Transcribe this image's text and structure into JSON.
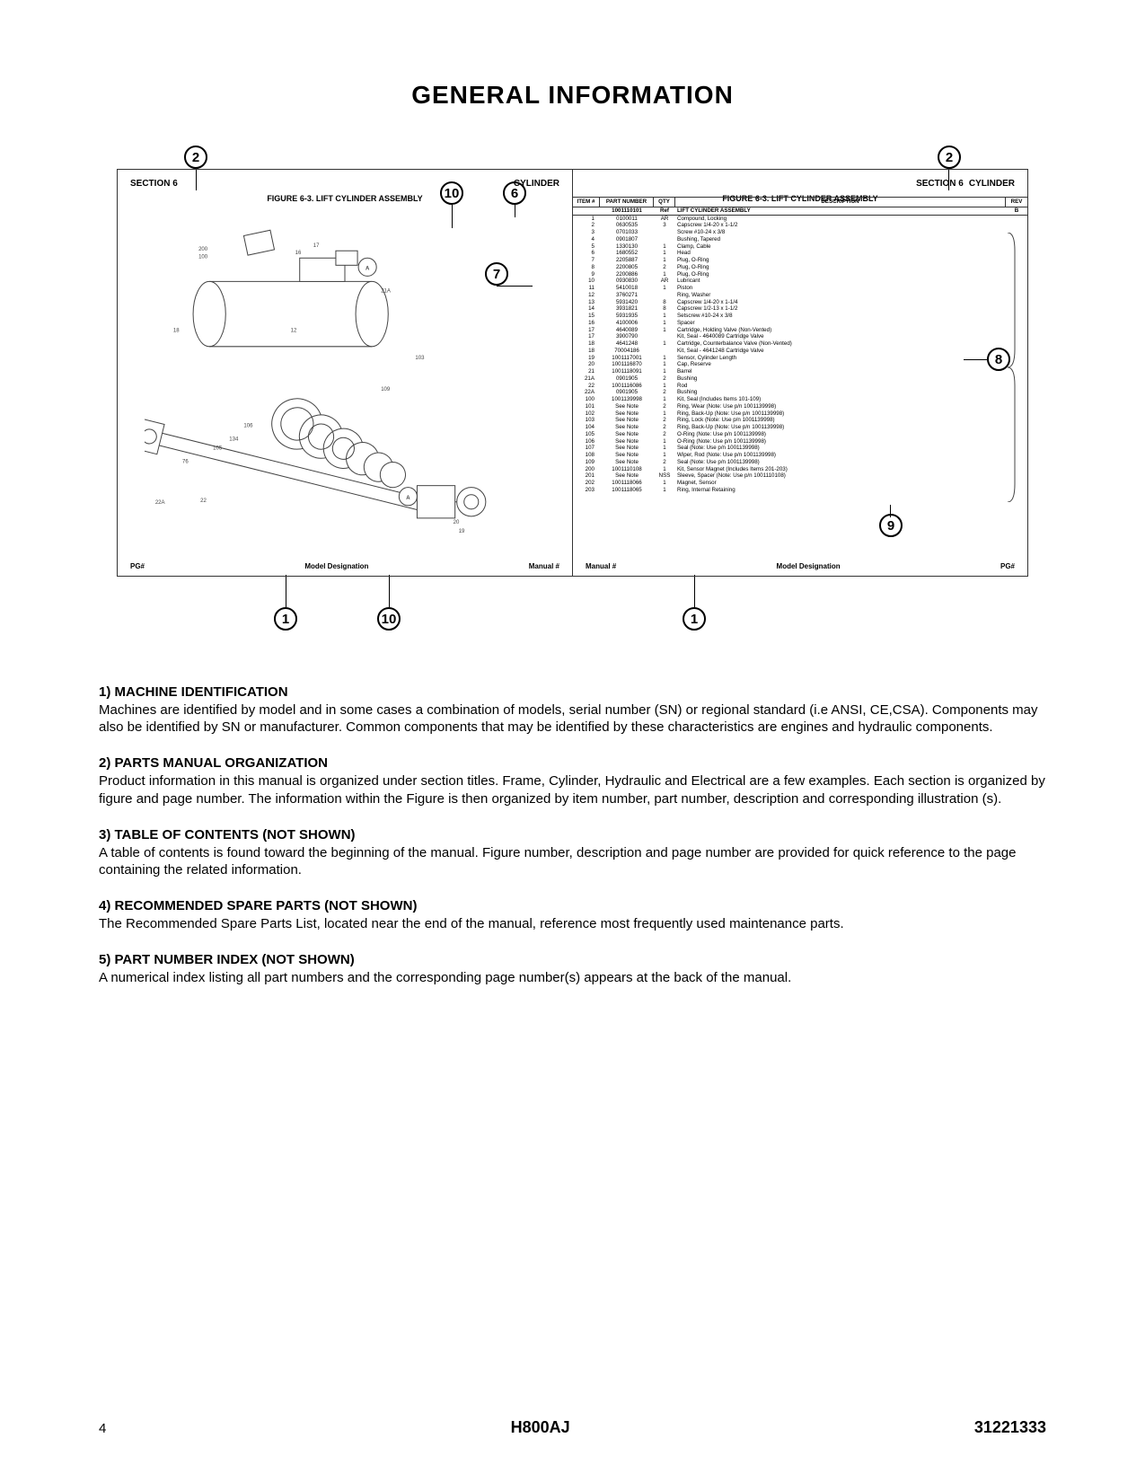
{
  "title": "GENERAL INFORMATION",
  "diagram": {
    "callouts": {
      "c1": "1",
      "c2": "2",
      "c6": "6",
      "c7": "7",
      "c8": "8",
      "c9": "9",
      "c10": "10"
    },
    "left_panel": {
      "section_l": "SECTION 6",
      "section_r": "CYLINDER",
      "fig_title": "FIGURE 6-3. LIFT CYLINDER ASSEMBLY",
      "badge_a": "A",
      "footer_l": "PG#",
      "footer_c": "Model Designation",
      "footer_r": "Manual #"
    },
    "right_panel": {
      "section_l": "SECTION 6",
      "section_r": "CYLINDER",
      "fig_title": "FIGURE 6-3. LIFT CYLINDER ASSEMBLY",
      "table_headers": [
        "ITEM #",
        "PART NUMBER",
        "QTY",
        "DESCRIPTION",
        "REV"
      ],
      "top_row": [
        "",
        "1001110101",
        "Ref",
        "LIFT CYLINDER ASSEMBLY",
        "B"
      ],
      "rows": [
        [
          "1",
          "0100011",
          "AR",
          "Compound, Locking",
          ""
        ],
        [
          "2",
          "0630535",
          "3",
          "Capscrew 1/4-20 x 1-1/2",
          ""
        ],
        [
          "3",
          "0701033",
          "",
          "Screw #10-24 x 3/8",
          ""
        ],
        [
          "4",
          "0901807",
          "",
          "Bushing, Tapered",
          ""
        ],
        [
          "5",
          "1330130",
          "1",
          "Clamp, Cable",
          ""
        ],
        [
          "6",
          "1680552",
          "1",
          "Head",
          ""
        ],
        [
          "7",
          "2205887",
          "1",
          "Plug, O-Ring",
          ""
        ],
        [
          "8",
          "2200805",
          "2",
          "Plug, O-Ring",
          ""
        ],
        [
          "9",
          "2200886",
          "1",
          "Plug, O-Ring",
          ""
        ],
        [
          "10",
          "0930830",
          "AR",
          "Lubricant",
          ""
        ],
        [
          "11",
          "5410018",
          "1",
          "Piston",
          ""
        ],
        [
          "12",
          "3760271",
          "",
          "Ring, Washer",
          ""
        ],
        [
          "13",
          "5931420",
          "8",
          "Capscrew 1/4-20 x 1-1/4",
          ""
        ],
        [
          "14",
          "3931821",
          "8",
          "Capscrew 1/2-13 x 1-1/2",
          ""
        ],
        [
          "15",
          "5931935",
          "1",
          "Setscrew #10-24 x 3/8",
          ""
        ],
        [
          "16",
          "4100006",
          "1",
          "Spacer",
          ""
        ],
        [
          "17",
          "4640089",
          "1",
          "Cartridge, Holding Valve (Non-Vented)",
          ""
        ],
        [
          "17",
          "3900790",
          "",
          "   Kit, Seal - 4640089 Cartridge Valve",
          ""
        ],
        [
          "18",
          "4641248",
          "1",
          "Cartridge, Counterbalance Valve (Non-Vented)",
          ""
        ],
        [
          "18",
          "70004186",
          "",
          "   Kit, Seal - 4641248 Cartridge Valve",
          ""
        ],
        [
          "19",
          "1001117001",
          "1",
          "Sensor, Cylinder Length",
          ""
        ],
        [
          "20",
          "1001116870",
          "1",
          "Cap, Reserve",
          ""
        ],
        [
          "21",
          "1001118091",
          "1",
          "Barrel",
          ""
        ],
        [
          "21A",
          "0901905",
          "2",
          "   Bushing",
          ""
        ],
        [
          "22",
          "1001116086",
          "1",
          "Rod",
          ""
        ],
        [
          "22A",
          "0901905",
          "2",
          "   Bushing",
          ""
        ],
        [
          "100",
          "1001139998",
          "1",
          "Kit, Seal (Includes Items 101-109)",
          ""
        ],
        [
          "101",
          "See Note",
          "2",
          "   Ring, Wear (Note: Use p/n 1001139998)",
          ""
        ],
        [
          "102",
          "See Note",
          "1",
          "   Ring, Back-Up (Note: Use p/n 1001139998)",
          ""
        ],
        [
          "103",
          "See Note",
          "2",
          "   Ring, Lock (Note: Use p/n 1001139998)",
          ""
        ],
        [
          "104",
          "See Note",
          "2",
          "   Ring, Back-Up (Note: Use p/n 1001139998)",
          ""
        ],
        [
          "105",
          "See Note",
          "2",
          "   O-Ring (Note: Use p/n 1001139998)",
          ""
        ],
        [
          "106",
          "See Note",
          "1",
          "   O-Ring (Note: Use p/n 1001139998)",
          ""
        ],
        [
          "107",
          "See Note",
          "1",
          "   Seal (Note: Use p/n 1001139998)",
          ""
        ],
        [
          "108",
          "See Note",
          "1",
          "   Wiper, Rod (Note: Use p/n 1001139998)",
          ""
        ],
        [
          "109",
          "See Note",
          "2",
          "   Seal (Note: Use p/n 1001139998)",
          ""
        ],
        [
          "200",
          "1001110108",
          "1",
          "Kit, Sensor Magnet (Includes Items 201-203)",
          ""
        ],
        [
          "201",
          "See Note",
          "NSS",
          "   Sleeve, Spacer (Note: Use p/n 1001110108)",
          ""
        ],
        [
          "202",
          "1001118066",
          "1",
          "   Magnet, Sensor",
          ""
        ],
        [
          "203",
          "1001118065",
          "1",
          "   Ring, Internal Retaining",
          ""
        ]
      ],
      "footer_l": "Manual #",
      "footer_c": "Model Designation",
      "footer_r": "PG#"
    }
  },
  "sections": [
    {
      "heading": "1) MACHINE IDENTIFICATION",
      "body": "Machines are identified by model and in some cases a combination of models, serial number (SN) or regional standard (i.e ANSI, CE,CSA). Components may also be identified by SN or manufacturer. Common components that may be identified by these characteristics are engines and hydraulic components."
    },
    {
      "heading": "2) PARTS MANUAL ORGANIZATION",
      "body": "Product information in this manual is organized under section titles. Frame, Cylinder, Hydraulic and Electrical are a few examples. Each section is organized by figure and page number. The information within the Figure is then organized by item number, part number, description and corresponding illustration (s)."
    },
    {
      "heading": "3) TABLE OF CONTENTS (NOT SHOWN)",
      "body": "A table of contents is found toward the beginning of the manual. Figure number, description and page number are provided for quick reference to the page containing the related information."
    },
    {
      "heading": "4) RECOMMENDED SPARE PARTS (NOT SHOWN)",
      "body": "The Recommended Spare Parts List, located near the end of the manual, reference most frequently used maintenance parts."
    },
    {
      "heading": "5) PART NUMBER INDEX (NOT SHOWN)",
      "body": "A numerical index listing all part numbers and the corresponding page number(s) appears at the back of the manual."
    }
  ],
  "footer": {
    "page": "4",
    "model": "H800AJ",
    "doc": "31221333"
  }
}
